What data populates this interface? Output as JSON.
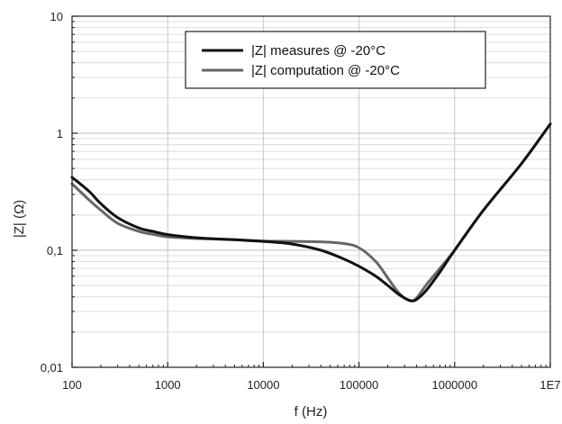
{
  "chart_data": {
    "type": "line",
    "xlabel": "f (Hz)",
    "ylabel": "|Z| (Ω)",
    "xscale": "log",
    "yscale": "log",
    "xlim": [
      100,
      10000000
    ],
    "ylim": [
      0.01,
      10
    ],
    "x_tick_values": [
      100,
      1000,
      10000,
      100000,
      1000000,
      10000000
    ],
    "x_tick_labels": [
      "100",
      "1000",
      "10000",
      "100000",
      "1000000",
      "1E7"
    ],
    "y_tick_values": [
      0.01,
      0.1,
      1,
      10
    ],
    "y_tick_labels": [
      "0,01",
      "0,1",
      "1",
      "10"
    ],
    "grid": "horizontal major and minor lines, vertical major lines",
    "legend_position": "top-right",
    "series": [
      {
        "name": "|Z| measures @ -20°C",
        "color": "#111111",
        "x": [
          100,
          150,
          200,
          300,
          500,
          700,
          1000,
          2000,
          5000,
          10000,
          20000,
          40000,
          70000,
          100000,
          150000,
          200000,
          250000,
          300000,
          350000,
          400000,
          500000,
          700000,
          1000000,
          2000000,
          5000000,
          10000000
        ],
        "y": [
          0.42,
          0.32,
          0.25,
          0.19,
          0.155,
          0.145,
          0.136,
          0.128,
          0.123,
          0.119,
          0.113,
          0.1,
          0.084,
          0.073,
          0.06,
          0.05,
          0.043,
          0.039,
          0.037,
          0.038,
          0.045,
          0.065,
          0.1,
          0.22,
          0.55,
          1.2
        ]
      },
      {
        "name": "|Z| computation @ -20°C",
        "color": "#666666",
        "x": [
          100,
          150,
          200,
          300,
          500,
          700,
          1000,
          2000,
          5000,
          10000,
          20000,
          40000,
          70000,
          100000,
          150000,
          200000,
          250000,
          300000,
          350000,
          400000,
          500000,
          700000,
          1000000,
          2000000,
          5000000,
          10000000
        ],
        "y": [
          0.37,
          0.27,
          0.22,
          0.17,
          0.145,
          0.137,
          0.13,
          0.126,
          0.123,
          0.12,
          0.119,
          0.118,
          0.114,
          0.105,
          0.08,
          0.058,
          0.045,
          0.039,
          0.037,
          0.039,
          0.05,
          0.07,
          0.1,
          0.22,
          0.55,
          1.2
        ]
      }
    ]
  }
}
